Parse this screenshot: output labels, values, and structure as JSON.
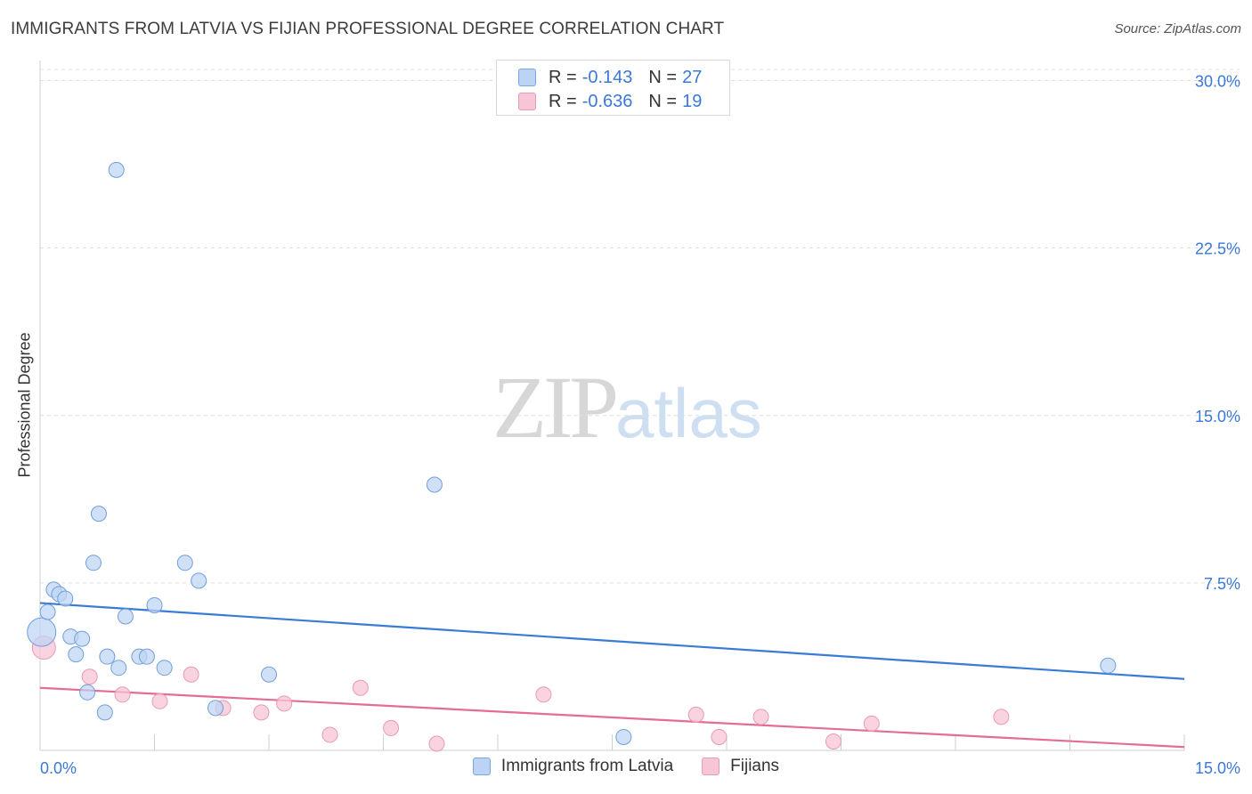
{
  "title": "IMMIGRANTS FROM LATVIA VS FIJIAN PROFESSIONAL DEGREE CORRELATION CHART",
  "source": "Source: ZipAtlas.com",
  "watermark": {
    "zip": "ZIP",
    "atlas": "atlas"
  },
  "legend": {
    "rows": [
      {
        "r_label": "R =",
        "r_value": "-0.143",
        "n_label": "N =",
        "n_value": "27"
      },
      {
        "r_label": "R =",
        "r_value": "-0.636",
        "n_label": "N =",
        "n_value": "19"
      }
    ]
  },
  "bottom_legend": {
    "series1": "Immigrants from Latvia",
    "series2": "Fijians"
  },
  "chart_data": {
    "type": "scatter",
    "title": "IMMIGRANTS FROM LATVIA VS FIJIAN PROFESSIONAL DEGREE CORRELATION CHART",
    "xlabel": "",
    "ylabel": "Professional Degree",
    "xlim": [
      0,
      15
    ],
    "ylim": [
      0,
      30.5
    ],
    "x_tick_labels": [
      "0.0%",
      "15.0%"
    ],
    "y_ticks": [
      7.5,
      15.0,
      22.5,
      30.0
    ],
    "y_tick_labels": [
      "7.5%",
      "15.0%",
      "22.5%",
      "30.0%"
    ],
    "grid": true,
    "colors": {
      "series1": "#3a7bd5",
      "series1_fill": "#bcd4f3",
      "series2": "#e46c97",
      "series2_fill": "#f7c6d6",
      "tick_text": "#3b78d8"
    },
    "series": [
      {
        "name": "Immigrants from Latvia",
        "r": -0.143,
        "n": 27,
        "points": [
          [
            0.02,
            5.3
          ],
          [
            0.1,
            6.2
          ],
          [
            0.18,
            7.2
          ],
          [
            0.25,
            7.0
          ],
          [
            0.33,
            6.8
          ],
          [
            0.4,
            5.1
          ],
          [
            0.47,
            4.3
          ],
          [
            0.55,
            5.0
          ],
          [
            0.62,
            2.6
          ],
          [
            0.7,
            8.4
          ],
          [
            0.77,
            10.6
          ],
          [
            0.85,
            1.7
          ],
          [
            0.88,
            4.2
          ],
          [
            1.03,
            3.7
          ],
          [
            1.0,
            26.0
          ],
          [
            1.12,
            6.0
          ],
          [
            1.3,
            4.2
          ],
          [
            1.4,
            4.2
          ],
          [
            1.5,
            6.5
          ],
          [
            1.63,
            3.7
          ],
          [
            1.9,
            8.4
          ],
          [
            2.08,
            7.6
          ],
          [
            2.3,
            1.9
          ],
          [
            3.0,
            3.4
          ],
          [
            5.17,
            11.9
          ],
          [
            7.65,
            0.6
          ],
          [
            14.0,
            3.8
          ]
        ],
        "trend": {
          "x": [
            0,
            15
          ],
          "y": [
            6.6,
            3.2
          ]
        }
      },
      {
        "name": "Fijians",
        "r": -0.636,
        "n": 19,
        "points": [
          [
            0.05,
            4.6
          ],
          [
            0.65,
            3.3
          ],
          [
            1.08,
            2.5
          ],
          [
            1.57,
            2.2
          ],
          [
            1.98,
            3.4
          ],
          [
            2.4,
            1.9
          ],
          [
            2.9,
            1.7
          ],
          [
            3.2,
            2.1
          ],
          [
            3.8,
            0.7
          ],
          [
            4.2,
            2.8
          ],
          [
            4.6,
            1.0
          ],
          [
            5.2,
            0.3
          ],
          [
            6.6,
            2.5
          ],
          [
            8.6,
            1.6
          ],
          [
            8.9,
            0.6
          ],
          [
            9.45,
            1.5
          ],
          [
            10.4,
            0.4
          ],
          [
            10.9,
            1.2
          ],
          [
            12.6,
            1.5
          ]
        ],
        "trend": {
          "x": [
            0,
            15
          ],
          "y": [
            2.8,
            0.15
          ]
        }
      }
    ]
  }
}
